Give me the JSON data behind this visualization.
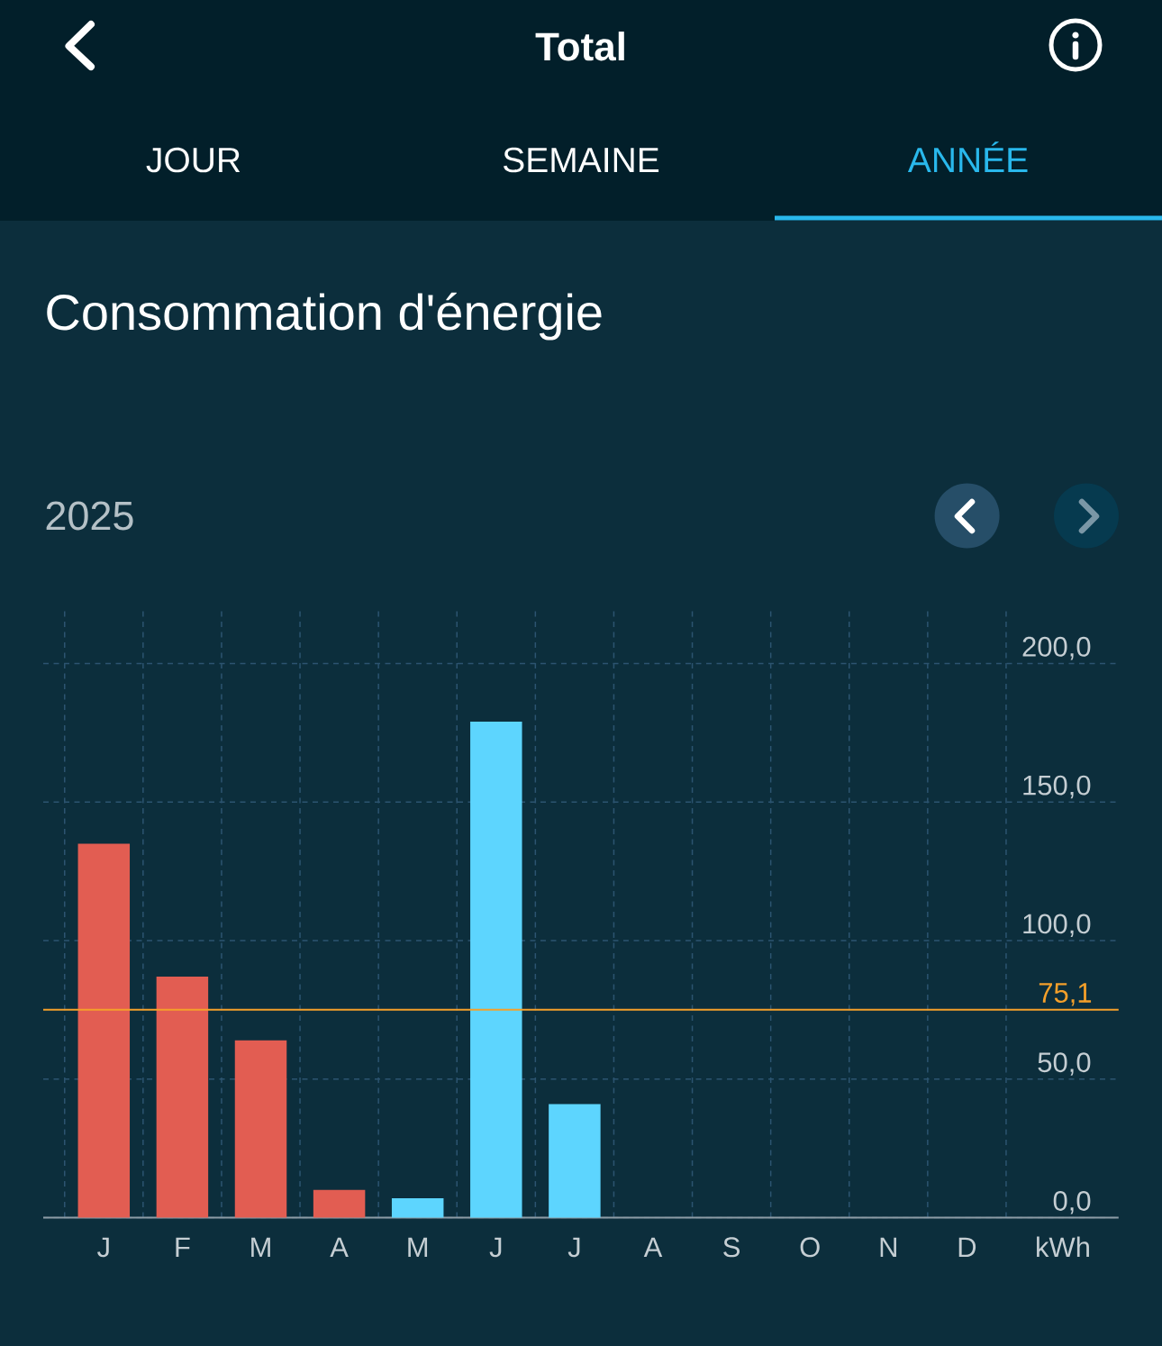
{
  "chart_data": {
    "type": "bar",
    "title": "Consommation d'énergie",
    "subtitle": "2025",
    "ylabel": "kWh",
    "annotations": [
      "Total",
      "JOUR",
      "SEMAINE",
      "ANNÉE"
    ],
    "categories": [
      "J",
      "F",
      "M",
      "A",
      "M",
      "J",
      "J",
      "A",
      "S",
      "O",
      "N",
      "D"
    ],
    "values": [
      135,
      87,
      64,
      10,
      7,
      179,
      41,
      null,
      null,
      null,
      null,
      null
    ],
    "colors": [
      "#e25d52",
      "#e25d52",
      "#e25d52",
      "#e25d52",
      "#5dd5fe",
      "#5dd5fe",
      "#5dd5fe",
      null,
      null,
      null,
      null,
      null
    ],
    "ylim": [
      0,
      220
    ],
    "yticks": [
      {
        "value": 0,
        "label": "0,0"
      },
      {
        "value": 50,
        "label": "50,0"
      },
      {
        "value": 100,
        "label": "100,0"
      },
      {
        "value": 150,
        "label": "150,0"
      },
      {
        "value": 200,
        "label": "200,0"
      }
    ],
    "grid": true,
    "ref_lines": [
      {
        "axis": "y",
        "value": 75.1,
        "label": "75,1",
        "color": "#f5a02a"
      }
    ]
  }
}
